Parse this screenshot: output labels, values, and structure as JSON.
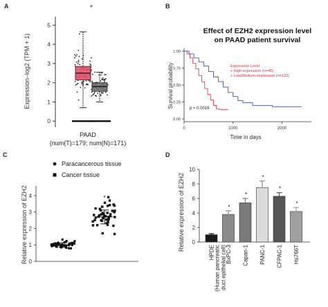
{
  "chart_data": [
    {
      "panel_label": "A",
      "type": "box",
      "ylabel": "Expression–log2 (TPM + 1)",
      "yticks": [
        0,
        1,
        2,
        3,
        4,
        5
      ],
      "ylim": [
        -0.1,
        5.3
      ],
      "xlabel": "PAAD",
      "xsub": "(num(T)=179; num(N)=171)",
      "star": "*",
      "series": [
        {
          "color": "#e0506a",
          "n": 179,
          "min": 0.7,
          "q1": 2.15,
          "median": 2.5,
          "q3": 2.85,
          "max": 4.65
        },
        {
          "color": "#707070",
          "n": 171,
          "min": 1.0,
          "q1": 1.55,
          "median": 1.8,
          "q3": 2.0,
          "max": 2.55
        }
      ]
    },
    {
      "panel_label": "B",
      "type": "line",
      "title_lines": [
        "Effect of EZH2 expression level",
        "on PAAD patient survival"
      ],
      "xlabel": "Time in days",
      "ylabel": "Survival probability",
      "xticks": [
        0,
        1000,
        2000
      ],
      "yticks": [
        "0.00",
        "0.25",
        "0.50",
        "0.75",
        "1.00"
      ],
      "xlim": [
        0,
        2600
      ],
      "ylim": [
        0,
        1.0
      ],
      "legend_title": "Expression Level",
      "pvalue": "p = 0.0016",
      "series": [
        {
          "name": "High-expression (n=45)",
          "color": "#e23a4a",
          "x": [
            0,
            60,
            120,
            180,
            240,
            300,
            360,
            420,
            480,
            540,
            600,
            660,
            720,
            780,
            900
          ],
          "y": [
            1.0,
            0.96,
            0.9,
            0.82,
            0.74,
            0.64,
            0.55,
            0.45,
            0.36,
            0.28,
            0.2,
            0.15,
            0.14,
            0.14,
            0.14
          ]
        },
        {
          "name": "Low/Medium-expression (n=132)",
          "color": "#3a52c8",
          "x": [
            0,
            100,
            200,
            300,
            400,
            500,
            600,
            700,
            800,
            900,
            1000,
            1100,
            1200,
            1400,
            1600,
            1800,
            2000,
            2200,
            2400
          ],
          "y": [
            1.0,
            0.96,
            0.9,
            0.84,
            0.78,
            0.7,
            0.62,
            0.55,
            0.47,
            0.39,
            0.33,
            0.27,
            0.24,
            0.2,
            0.2,
            0.18,
            0.18,
            0.18,
            0.18
          ]
        }
      ]
    },
    {
      "panel_label": "C",
      "type": "scatter",
      "ylabel": "Relative expression of EZH2",
      "yticks": [
        0,
        1,
        2,
        3,
        4
      ],
      "ylim": [
        0,
        4.5
      ],
      "star": "*",
      "series": [
        {
          "name": "Paracancerous tissue",
          "marker": "circle",
          "mean": 1.0,
          "sd": 0.13,
          "n": 45
        },
        {
          "name": "Cancer tissue",
          "marker": "square",
          "mean": 2.7,
          "sd": 0.42,
          "n": 45
        }
      ]
    },
    {
      "panel_label": "D",
      "type": "bar",
      "ylabel": "Relative expression of EZH2",
      "yticks": [
        0,
        2,
        4,
        6,
        8,
        10
      ],
      "ylim": [
        0,
        10
      ],
      "categories": [
        "HPDE",
        "BxPC-3",
        "Capan-1",
        "PANC-1",
        "CFPAC-1",
        "Hs766T"
      ],
      "category_notes": [
        "(Human pancreatic",
        "duct epithelial cell)"
      ],
      "values": [
        1.0,
        3.8,
        5.4,
        7.5,
        6.3,
        4.2
      ],
      "errors": [
        0.15,
        0.5,
        0.6,
        0.9,
        0.5,
        0.55
      ],
      "colors": [
        "#1a1a1a",
        "#8a8a8a",
        "#7a7a7a",
        "#dcdcdc",
        "#555555",
        "#a0a0a0"
      ],
      "stars": [
        "",
        "*",
        "*",
        "*",
        "*",
        "*"
      ]
    }
  ]
}
